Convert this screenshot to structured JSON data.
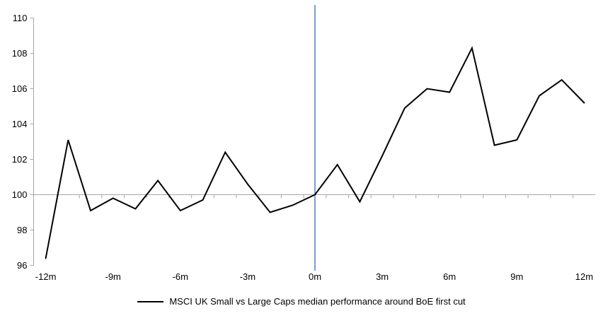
{
  "chart_data": {
    "type": "line",
    "legend": "MSCI UK Small vs Large Caps median performance around BoE first cut",
    "legend_position": "bottom",
    "grid": "off",
    "x": [
      -12,
      -11,
      -10,
      -9,
      -8,
      -7,
      -6,
      -5,
      -4,
      -3,
      -2,
      -1,
      0,
      1,
      2,
      3,
      4,
      5,
      6,
      7,
      8,
      9,
      10,
      11,
      12
    ],
    "series": [
      {
        "name": "MSCI UK Small vs Large Caps median performance around BoE first cut",
        "values": [
          96.4,
          103.1,
          99.1,
          99.8,
          99.2,
          100.8,
          99.1,
          99.7,
          102.4,
          100.6,
          99.0,
          99.4,
          100.0,
          101.7,
          99.6,
          102.2,
          104.9,
          106.0,
          105.8,
          108.3,
          102.8,
          103.1,
          105.6,
          106.5,
          105.2
        ]
      }
    ],
    "xlim": [
      -12,
      12
    ],
    "ylim": [
      96,
      110
    ],
    "y_ticks": [
      96,
      98,
      100,
      102,
      104,
      106,
      108,
      110
    ],
    "x_tick_positions": [
      -12,
      -9,
      -6,
      -3,
      0,
      3,
      6,
      9,
      12
    ],
    "x_tick_labels": [
      "-12m",
      "-9m",
      "-6m",
      "-3m",
      "0m",
      "3m",
      "6m",
      "9m",
      "12m"
    ],
    "baseline_value": 100,
    "event_line_x": 0,
    "colors": {
      "series": "#000000",
      "baseline": "#a6a6a6",
      "axis": "#a6a6a6",
      "event_line": "#4f81bd",
      "text": "#000000"
    }
  }
}
